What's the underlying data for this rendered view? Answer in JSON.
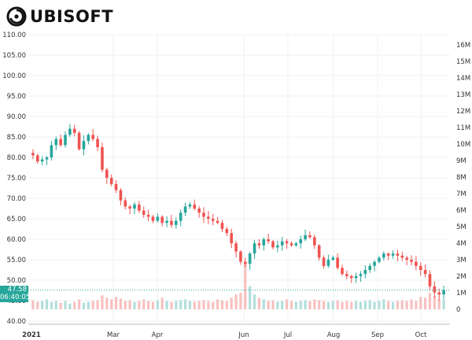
{
  "brand": {
    "name": "UBISOFT",
    "logo_icon": "ubisoft-swirl-icon"
  },
  "price_label": {
    "value": "47.58",
    "countdown": "06:40:05",
    "color": "#26a69a"
  },
  "colors": {
    "up": "#26a69a",
    "down": "#ef5350",
    "vol_up": "#b2dfdb",
    "vol_down": "#f7c1bf"
  },
  "chart_data": {
    "type": "candlestick",
    "title": "",
    "x_tick_labels": [
      "2021",
      "Mar",
      "Apr",
      "Jun",
      "Jul",
      "Aug",
      "Sep",
      "Oct"
    ],
    "y_price_ticks": [
      "110.00",
      "105.00",
      "100.00",
      "95.00",
      "90.00",
      "85.00",
      "80.00",
      "75.00",
      "70.00",
      "65.00",
      "60.00",
      "55.00",
      "50.00",
      "45.00",
      "40.00"
    ],
    "y_volume_ticks": [
      "16M",
      "15M",
      "14M",
      "13M",
      "12M",
      "11M",
      "10M",
      "9M",
      "8M",
      "7M",
      "6M",
      "5M",
      "4M",
      "3M",
      "2M",
      "1M",
      "0"
    ],
    "price_range": [
      40,
      110
    ],
    "volume_range": [
      0,
      16000000
    ],
    "current_price": 47.58,
    "grid": true,
    "close_series": [
      80.5,
      79.0,
      79.5,
      80.0,
      83.0,
      84.5,
      83.0,
      85.5,
      87.0,
      86.0,
      82.0,
      84.0,
      85.5,
      84.5,
      82.5,
      77.0,
      75.0,
      73.5,
      72.0,
      69.5,
      68.0,
      67.5,
      68.5,
      67.0,
      66.0,
      65.5,
      64.5,
      65.5,
      64.0,
      64.5,
      63.5,
      64.5,
      66.5,
      68.0,
      68.5,
      67.5,
      66.5,
      65.5,
      65.0,
      64.5,
      64.0,
      62.5,
      61.5,
      59.0,
      57.0,
      54.5,
      54.0,
      56.5,
      59.0,
      58.5,
      60.0,
      59.5,
      58.0,
      58.5,
      59.5,
      59.0,
      58.5,
      59.0,
      60.0,
      61.0,
      60.5,
      58.5,
      55.5,
      53.5,
      55.0,
      55.5,
      53.0,
      51.5,
      51.0,
      50.5,
      51.0,
      51.5,
      52.5,
      53.5,
      54.5,
      55.5,
      56.5,
      56.0,
      56.5,
      56.0,
      55.5,
      55.0,
      54.5,
      53.5,
      52.5,
      51.5,
      48.5,
      47.0,
      46.5,
      47.58
    ],
    "volume_series": [
      0.55,
      0.45,
      0.5,
      0.6,
      0.45,
      0.5,
      0.4,
      0.5,
      0.35,
      0.45,
      0.6,
      0.4,
      0.45,
      0.5,
      0.55,
      0.85,
      0.7,
      0.6,
      0.75,
      0.65,
      0.5,
      0.55,
      0.45,
      0.5,
      0.6,
      0.5,
      0.45,
      0.55,
      0.7,
      0.5,
      0.45,
      0.5,
      0.55,
      0.6,
      0.5,
      0.45,
      0.5,
      0.55,
      0.5,
      0.45,
      0.6,
      0.55,
      0.5,
      0.7,
      0.9,
      1.0,
      2.75,
      1.4,
      0.9,
      0.7,
      0.6,
      0.5,
      0.55,
      0.45,
      0.5,
      0.6,
      0.5,
      0.45,
      0.5,
      0.55,
      0.5,
      0.6,
      0.55,
      0.5,
      0.45,
      0.5,
      0.55,
      0.45,
      0.5,
      0.45,
      0.5,
      0.45,
      0.5,
      0.55,
      0.45,
      0.5,
      0.6,
      0.5,
      0.45,
      0.5,
      0.55,
      0.5,
      0.6,
      0.5,
      0.75,
      0.7,
      1.0,
      0.8,
      0.6,
      0.55
    ]
  }
}
